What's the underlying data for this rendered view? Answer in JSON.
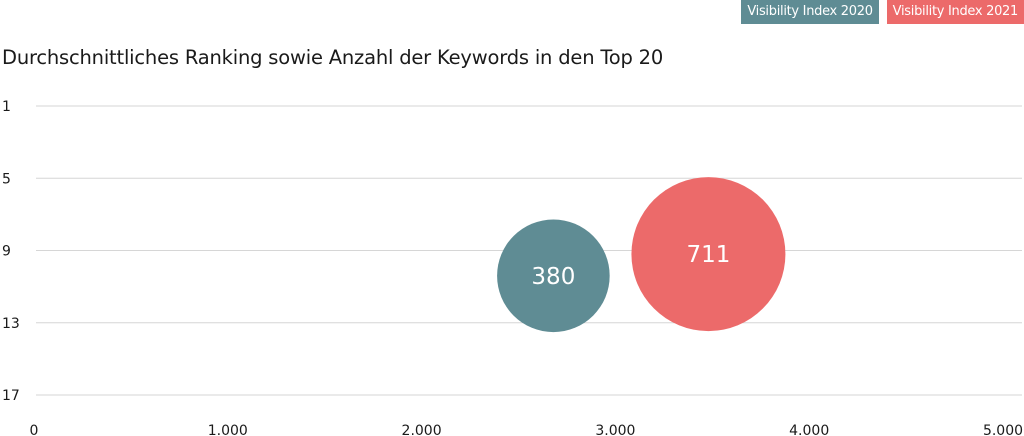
{
  "chart_data": {
    "type": "scatter",
    "title": "Durchschnittliches Ranking sowie Anzahl der Keywords in den Top 20",
    "xlabel": "",
    "ylabel": "",
    "xlim": [
      0,
      5000
    ],
    "ylim": [
      1,
      17
    ],
    "y_reversed": true,
    "grid": true,
    "legend_position": "top-right",
    "x_ticks": [
      0,
      1000,
      2000,
      3000,
      4000,
      5000
    ],
    "x_tick_labels": [
      "0",
      "1.000",
      "2.000",
      "3.000",
      "4.000",
      "5.000"
    ],
    "y_ticks": [
      1,
      5,
      9,
      13,
      17
    ],
    "y_tick_labels": [
      "1",
      "5",
      "9",
      "13",
      "17"
    ],
    "series": [
      {
        "name": "Visibility Index 2020",
        "color": "#5f8c94",
        "x": 2680,
        "y": 10.4,
        "size": 380,
        "label": "380"
      },
      {
        "name": "Visibility Index 2021",
        "color": "#ec6a6a",
        "x": 3480,
        "y": 9.2,
        "size": 711,
        "label": "711"
      }
    ]
  }
}
